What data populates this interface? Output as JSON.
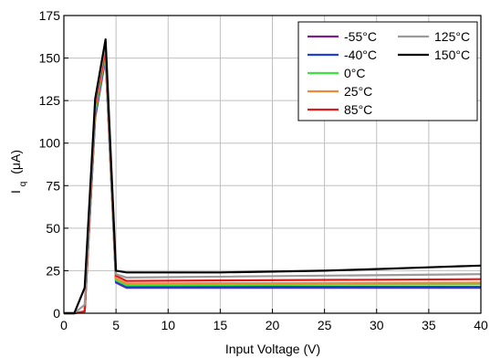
{
  "chart_data": {
    "type": "line",
    "title": "",
    "xlabel": "Input Voltage (V)",
    "ylabel": "I",
    "ylabel_sub": "q",
    "ylabel_unit": "(μA)",
    "xlim": [
      0,
      40
    ],
    "ylim": [
      0,
      175
    ],
    "xticks": [
      "0",
      "5",
      "10",
      "15",
      "20",
      "25",
      "30",
      "35",
      "40"
    ],
    "yticks": [
      "0",
      "25",
      "50",
      "75",
      "100",
      "125",
      "150",
      "175"
    ],
    "grid": true,
    "legend_position": "top-right",
    "series": [
      {
        "name": "-55°C",
        "color": "#7b1f8f",
        "x": [
          0,
          1,
          2,
          3,
          4,
          5,
          6,
          40
        ],
        "y": [
          0,
          0,
          1,
          115,
          150,
          18,
          15,
          15
        ]
      },
      {
        "name": "-40°C",
        "color": "#1f3fd6",
        "x": [
          0,
          1,
          2,
          3,
          4,
          5,
          6,
          40
        ],
        "y": [
          0,
          0,
          1,
          116,
          151,
          18.5,
          15.5,
          15.5
        ]
      },
      {
        "name": "0°C",
        "color": "#39e639",
        "x": [
          0,
          1,
          2,
          3,
          4,
          5,
          6,
          40
        ],
        "y": [
          0,
          0,
          1,
          118,
          152,
          19.5,
          16.5,
          17
        ]
      },
      {
        "name": "25°C",
        "color": "#f0883a",
        "x": [
          0,
          1,
          2,
          3,
          4,
          5,
          6,
          40
        ],
        "y": [
          0,
          0,
          1,
          120,
          153,
          20.5,
          17.5,
          18
        ]
      },
      {
        "name": "85°C",
        "color": "#e01919",
        "x": [
          0,
          1,
          2,
          3,
          4,
          5,
          6,
          40
        ],
        "y": [
          0,
          0,
          1,
          122,
          155,
          22,
          19,
          20
        ]
      },
      {
        "name": "125°C",
        "color": "#9a9a9a",
        "x": [
          0,
          1,
          2,
          3,
          4,
          5,
          6,
          40
        ],
        "y": [
          0,
          0,
          5,
          124,
          158,
          23,
          21,
          23
        ]
      },
      {
        "name": "150°C",
        "color": "#000000",
        "x": [
          0,
          1,
          2,
          3,
          4,
          5,
          6,
          10,
          15,
          20,
          25,
          30,
          35,
          40
        ],
        "y": [
          0,
          0,
          15,
          126,
          161,
          25,
          24,
          24,
          24,
          24.5,
          25,
          26,
          27,
          28
        ]
      }
    ]
  }
}
